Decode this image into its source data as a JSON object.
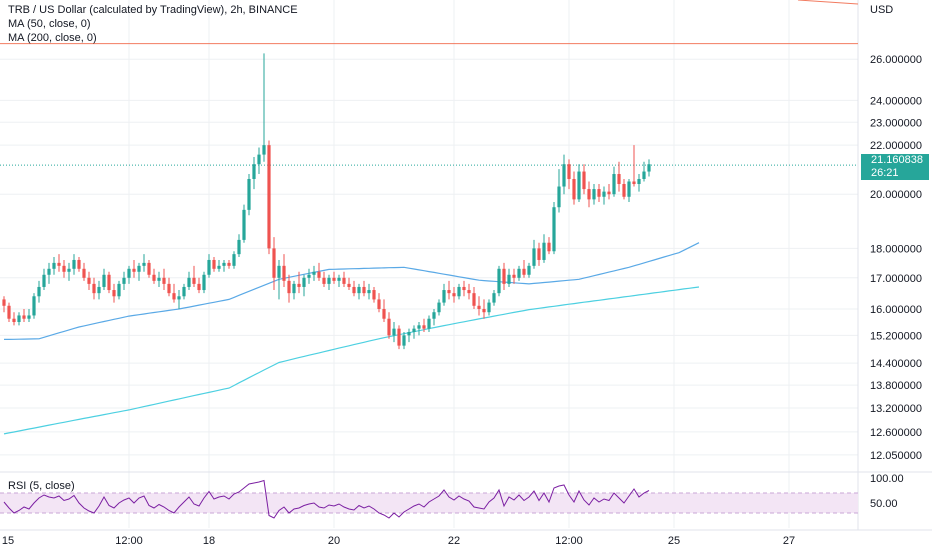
{
  "header": {
    "legend_main": "TRB / US Dollar (calculated by TradingView), 2h, BINANCE",
    "legend_ma50": "MA (50, close, 0)",
    "legend_ma200": "MA (200, close, 0)",
    "currency": "USD",
    "rsi_legend": "RSI (5, close)"
  },
  "last_price": {
    "value": "21.160838",
    "countdown": "26:21"
  },
  "colors": {
    "up": "#26a69a",
    "down": "#ef5350",
    "ma50": "#5aa9e6",
    "ma200": "#4dd0e1",
    "hline": "#f27b60",
    "rsi_line": "#7b1fa2",
    "rsi_band": "#f3e5f5",
    "grid": "#eef0f3"
  },
  "chart_data": [
    {
      "type": "candlestick",
      "title": "TRB / US Dollar (calculated by TradingView), 2h, BINANCE",
      "scale": "log",
      "ylim": [
        11.7,
        28.5
      ],
      "y_ticks": [
        "26.000000",
        "24.000000",
        "23.000000",
        "22.000000",
        "20.000000",
        "18.000000",
        "17.000000",
        "16.000000",
        "15.200000",
        "14.400000",
        "13.800000",
        "13.200000",
        "12.600000",
        "12.050000"
      ],
      "y_tick_values": [
        26.0,
        24.0,
        23.0,
        22.0,
        20.0,
        18.0,
        17.0,
        16.0,
        15.2,
        14.4,
        13.8,
        13.2,
        12.6,
        12.05
      ],
      "x_ticks": [
        "15",
        "12:00",
        "18",
        "20",
        "22",
        "12:00",
        "25",
        "27"
      ],
      "x_tick_index": [
        -1,
        25,
        41,
        66,
        90,
        113,
        134,
        157
      ],
      "grid": true,
      "horizontal_line": 26.8,
      "last_price": 21.160838,
      "candles": [
        [
          16.3,
          16.4,
          15.9,
          16.1
        ],
        [
          16.1,
          16.2,
          15.6,
          15.7
        ],
        [
          15.7,
          15.9,
          15.5,
          15.6
        ],
        [
          15.6,
          15.9,
          15.5,
          15.8
        ],
        [
          15.8,
          16.0,
          15.6,
          15.7
        ],
        [
          15.7,
          16.0,
          15.6,
          15.8
        ],
        [
          15.8,
          16.5,
          15.7,
          16.4
        ],
        [
          16.4,
          16.9,
          16.2,
          16.7
        ],
        [
          16.7,
          17.3,
          16.6,
          17.1
        ],
        [
          17.1,
          17.5,
          16.8,
          17.3
        ],
        [
          17.3,
          17.7,
          17.1,
          17.5
        ],
        [
          17.5,
          17.8,
          17.2,
          17.4
        ],
        [
          17.4,
          17.6,
          17.0,
          17.2
        ],
        [
          17.2,
          17.5,
          16.9,
          17.3
        ],
        [
          17.3,
          17.8,
          17.1,
          17.6
        ],
        [
          17.6,
          17.7,
          17.2,
          17.3
        ],
        [
          17.3,
          17.5,
          16.9,
          17.0
        ],
        [
          17.0,
          17.2,
          16.6,
          16.8
        ],
        [
          16.8,
          17.0,
          16.3,
          16.5
        ],
        [
          16.5,
          16.9,
          16.3,
          16.7
        ],
        [
          16.7,
          17.3,
          16.6,
          17.1
        ],
        [
          17.1,
          17.2,
          16.5,
          16.6
        ],
        [
          16.6,
          16.8,
          16.2,
          16.4
        ],
        [
          16.4,
          16.9,
          16.3,
          16.8
        ],
        [
          16.8,
          17.2,
          16.6,
          17.0
        ],
        [
          17.0,
          17.4,
          16.8,
          17.3
        ],
        [
          17.3,
          17.6,
          17.0,
          17.2
        ],
        [
          17.2,
          17.5,
          16.9,
          17.4
        ],
        [
          17.4,
          17.8,
          17.2,
          17.5
        ],
        [
          17.5,
          17.6,
          17.0,
          17.1
        ],
        [
          17.1,
          17.3,
          16.8,
          16.9
        ],
        [
          16.9,
          17.2,
          16.7,
          17.0
        ],
        [
          17.0,
          17.3,
          16.6,
          16.8
        ],
        [
          16.8,
          17.0,
          16.4,
          16.5
        ],
        [
          16.5,
          16.8,
          16.2,
          16.3
        ],
        [
          16.3,
          16.6,
          16.0,
          16.4
        ],
        [
          16.4,
          16.8,
          16.3,
          16.7
        ],
        [
          16.7,
          17.2,
          16.6,
          17.0
        ],
        [
          17.0,
          17.4,
          16.7,
          16.8
        ],
        [
          16.8,
          17.0,
          16.5,
          16.6
        ],
        [
          16.6,
          17.2,
          16.5,
          17.1
        ],
        [
          17.1,
          17.8,
          17.0,
          17.6
        ],
        [
          17.6,
          17.7,
          17.2,
          17.3
        ],
        [
          17.3,
          17.6,
          17.2,
          17.4
        ],
        [
          17.4,
          17.6,
          17.2,
          17.5
        ],
        [
          17.5,
          17.6,
          17.3,
          17.4
        ],
        [
          17.4,
          17.9,
          17.3,
          17.8
        ],
        [
          17.8,
          18.5,
          17.7,
          18.3
        ],
        [
          18.3,
          19.6,
          18.2,
          19.4
        ],
        [
          19.4,
          20.8,
          19.2,
          20.6
        ],
        [
          20.6,
          21.5,
          20.2,
          21.2
        ],
        [
          21.2,
          21.9,
          20.8,
          21.6
        ],
        [
          21.6,
          26.3,
          21.3,
          22.0
        ],
        [
          22.0,
          22.2,
          17.8,
          18.0
        ],
        [
          18.0,
          18.4,
          16.6,
          17.0
        ],
        [
          17.0,
          17.6,
          16.3,
          17.4
        ],
        [
          17.4,
          17.8,
          16.7,
          16.9
        ],
        [
          16.9,
          17.1,
          16.2,
          16.5
        ],
        [
          16.5,
          16.9,
          16.3,
          16.8
        ],
        [
          16.8,
          17.2,
          16.5,
          16.7
        ],
        [
          16.7,
          17.1,
          16.4,
          17.0
        ],
        [
          17.0,
          17.3,
          16.8,
          17.1
        ],
        [
          17.1,
          17.4,
          16.9,
          17.2
        ],
        [
          17.2,
          17.5,
          16.9,
          17.0
        ],
        [
          17.0,
          17.2,
          16.7,
          16.8
        ],
        [
          16.8,
          17.1,
          16.6,
          17.0
        ],
        [
          17.0,
          17.2,
          16.8,
          16.9
        ],
        [
          16.9,
          17.1,
          16.7,
          17.0
        ],
        [
          17.0,
          17.2,
          16.7,
          16.8
        ],
        [
          16.8,
          17.0,
          16.6,
          16.7
        ],
        [
          16.7,
          16.9,
          16.4,
          16.5
        ],
        [
          16.5,
          16.8,
          16.3,
          16.7
        ],
        [
          16.7,
          16.9,
          16.4,
          16.5
        ],
        [
          16.5,
          16.8,
          16.3,
          16.6
        ],
        [
          16.6,
          16.7,
          16.2,
          16.3
        ],
        [
          16.3,
          16.5,
          15.9,
          16.0
        ],
        [
          16.0,
          16.3,
          15.6,
          15.7
        ],
        [
          15.7,
          15.9,
          15.1,
          15.2
        ],
        [
          15.2,
          15.6,
          15.0,
          15.4
        ],
        [
          15.4,
          15.5,
          14.8,
          14.9
        ],
        [
          14.9,
          15.3,
          14.8,
          15.2
        ],
        [
          15.2,
          15.4,
          15.0,
          15.3
        ],
        [
          15.3,
          15.5,
          15.1,
          15.4
        ],
        [
          15.4,
          15.6,
          15.2,
          15.5
        ],
        [
          15.5,
          15.7,
          15.3,
          15.4
        ],
        [
          15.4,
          15.8,
          15.3,
          15.7
        ],
        [
          15.7,
          16.0,
          15.5,
          15.9
        ],
        [
          15.9,
          16.3,
          15.8,
          16.2
        ],
        [
          16.2,
          16.8,
          16.1,
          16.6
        ],
        [
          16.6,
          16.9,
          16.3,
          16.5
        ],
        [
          16.5,
          16.7,
          16.2,
          16.4
        ],
        [
          16.4,
          16.8,
          16.3,
          16.7
        ],
        [
          16.7,
          16.9,
          16.4,
          16.6
        ],
        [
          16.6,
          16.8,
          16.3,
          16.5
        ],
        [
          16.5,
          16.7,
          16.0,
          16.1
        ],
        [
          16.1,
          16.4,
          15.8,
          16.0
        ],
        [
          16.0,
          16.3,
          15.7,
          15.9
        ],
        [
          15.9,
          16.3,
          15.8,
          16.2
        ],
        [
          16.2,
          16.6,
          16.1,
          16.5
        ],
        [
          16.5,
          17.4,
          16.4,
          17.3
        ],
        [
          17.3,
          17.5,
          16.6,
          16.8
        ],
        [
          16.8,
          17.3,
          16.7,
          17.1
        ],
        [
          17.1,
          17.3,
          16.8,
          17.0
        ],
        [
          17.0,
          17.4,
          16.9,
          17.3
        ],
        [
          17.3,
          17.6,
          17.0,
          17.1
        ],
        [
          17.1,
          17.5,
          17.0,
          17.4
        ],
        [
          17.4,
          18.3,
          17.3,
          18.0
        ],
        [
          18.0,
          18.2,
          17.4,
          17.6
        ],
        [
          17.6,
          18.5,
          17.5,
          18.2
        ],
        [
          18.2,
          18.4,
          17.8,
          17.9
        ],
        [
          17.9,
          19.7,
          17.8,
          19.5
        ],
        [
          19.5,
          21.0,
          19.3,
          20.3
        ],
        [
          20.3,
          21.6,
          20.0,
          21.2
        ],
        [
          21.2,
          21.4,
          20.2,
          20.6
        ],
        [
          20.6,
          20.9,
          19.6,
          19.8
        ],
        [
          19.8,
          21.2,
          19.7,
          20.9
        ],
        [
          20.9,
          21.2,
          20.0,
          20.2
        ],
        [
          20.2,
          20.5,
          19.5,
          19.8
        ],
        [
          19.8,
          20.4,
          19.6,
          20.2
        ],
        [
          20.2,
          20.4,
          19.7,
          19.9
        ],
        [
          19.9,
          20.3,
          19.6,
          20.1
        ],
        [
          20.1,
          20.4,
          19.8,
          20.0
        ],
        [
          20.0,
          21.1,
          19.9,
          20.8
        ],
        [
          20.8,
          21.3,
          20.1,
          20.4
        ],
        [
          20.4,
          20.6,
          19.8,
          19.9
        ],
        [
          19.9,
          20.6,
          19.7,
          20.5
        ],
        [
          20.5,
          22.0,
          20.3,
          20.4
        ],
        [
          20.4,
          20.8,
          20.1,
          20.6
        ],
        [
          20.6,
          21.3,
          20.5,
          20.9
        ],
        [
          20.9,
          21.4,
          20.7,
          21.2
        ]
      ],
      "ma50_anchors": [
        [
          0,
          15.08
        ],
        [
          7,
          15.1
        ],
        [
          15,
          15.45
        ],
        [
          25,
          15.78
        ],
        [
          35,
          16.0
        ],
        [
          45,
          16.3
        ],
        [
          55,
          16.95
        ],
        [
          65,
          17.28
        ],
        [
          80,
          17.35
        ],
        [
          95,
          16.92
        ],
        [
          105,
          16.8
        ],
        [
          115,
          16.95
        ],
        [
          125,
          17.35
        ],
        [
          135,
          17.85
        ],
        [
          139,
          18.2
        ]
      ],
      "ma200_anchors": [
        [
          0,
          12.55
        ],
        [
          25,
          13.15
        ],
        [
          45,
          13.72
        ],
        [
          55,
          14.42
        ],
        [
          75,
          15.1
        ],
        [
          90,
          15.55
        ],
        [
          105,
          15.98
        ],
        [
          125,
          16.4
        ],
        [
          139,
          16.7
        ]
      ]
    },
    {
      "type": "line",
      "title": "RSI (5, close)",
      "y_ticks": [
        "100.00",
        "50.00"
      ],
      "band": [
        30,
        70
      ],
      "ylim": [
        0,
        100
      ],
      "values": [
        52,
        40,
        30,
        35,
        42,
        38,
        50,
        60,
        66,
        62,
        60,
        64,
        55,
        58,
        65,
        50,
        40,
        34,
        30,
        44,
        62,
        45,
        40,
        50,
        56,
        60,
        50,
        60,
        64,
        45,
        40,
        47,
        42,
        35,
        30,
        42,
        52,
        62,
        48,
        44,
        60,
        73,
        58,
        62,
        64,
        58,
        68,
        72,
        80,
        88,
        90,
        92,
        95,
        25,
        20,
        35,
        42,
        30,
        38,
        40,
        45,
        48,
        50,
        42,
        40,
        46,
        44,
        48,
        42,
        38,
        36,
        45,
        40,
        44,
        38,
        30,
        26,
        20,
        30,
        22,
        32,
        38,
        44,
        48,
        42,
        52,
        58,
        64,
        76,
        62,
        56,
        64,
        58,
        54,
        42,
        40,
        38,
        52,
        60,
        76,
        44,
        62,
        56,
        66,
        55,
        62,
        74,
        55,
        70,
        52,
        80,
        84,
        86,
        66,
        52,
        74,
        56,
        46,
        60,
        52,
        58,
        55,
        70,
        60,
        50,
        64,
        78,
        62,
        70,
        75
      ]
    }
  ]
}
